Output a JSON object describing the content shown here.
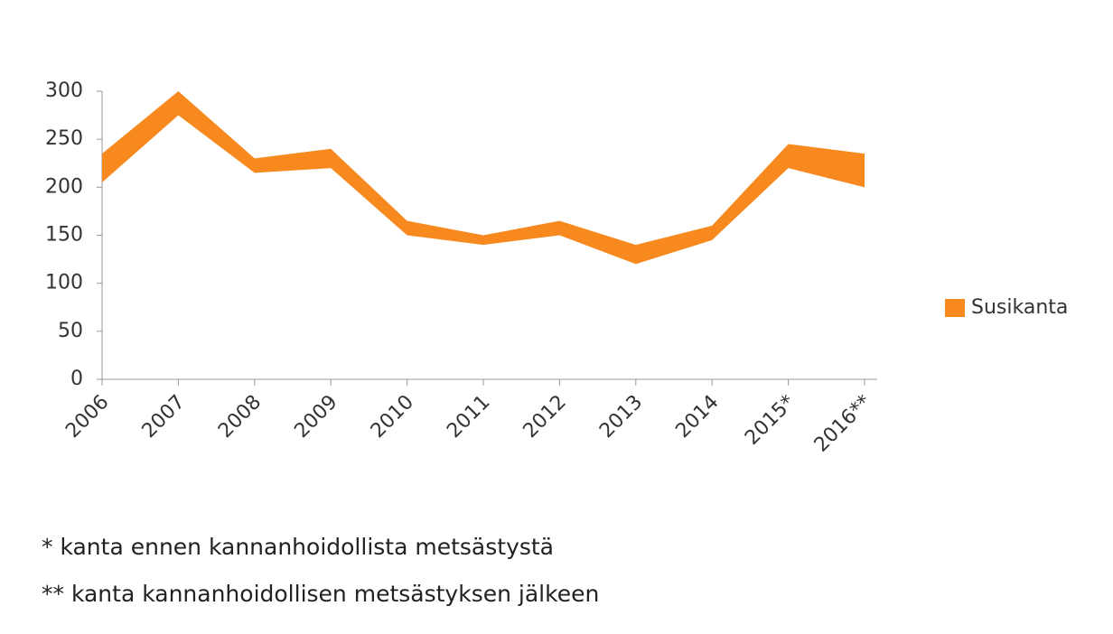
{
  "chart_data": {
    "type": "band",
    "categories": [
      "2006",
      "2007",
      "2008",
      "2009",
      "2010",
      "2011",
      "2012",
      "2013",
      "2014",
      "2015*",
      "2016**"
    ],
    "series": [
      {
        "name": "Susikanta",
        "color": "#f7891f",
        "low": [
          205,
          275,
          215,
          220,
          150,
          140,
          150,
          120,
          145,
          220,
          200
        ],
        "high": [
          235,
          300,
          230,
          240,
          165,
          150,
          165,
          140,
          160,
          245,
          235
        ]
      }
    ],
    "ylim": [
      0,
      300
    ],
    "yticks": [
      0,
      50,
      100,
      150,
      200,
      250,
      300
    ],
    "grid": false,
    "legend": "right",
    "notes": [
      "* kanta ennen kannanhoidollista metsästystä",
      "** kanta kannanhoidollisen metsästyksen jälkeen"
    ]
  }
}
